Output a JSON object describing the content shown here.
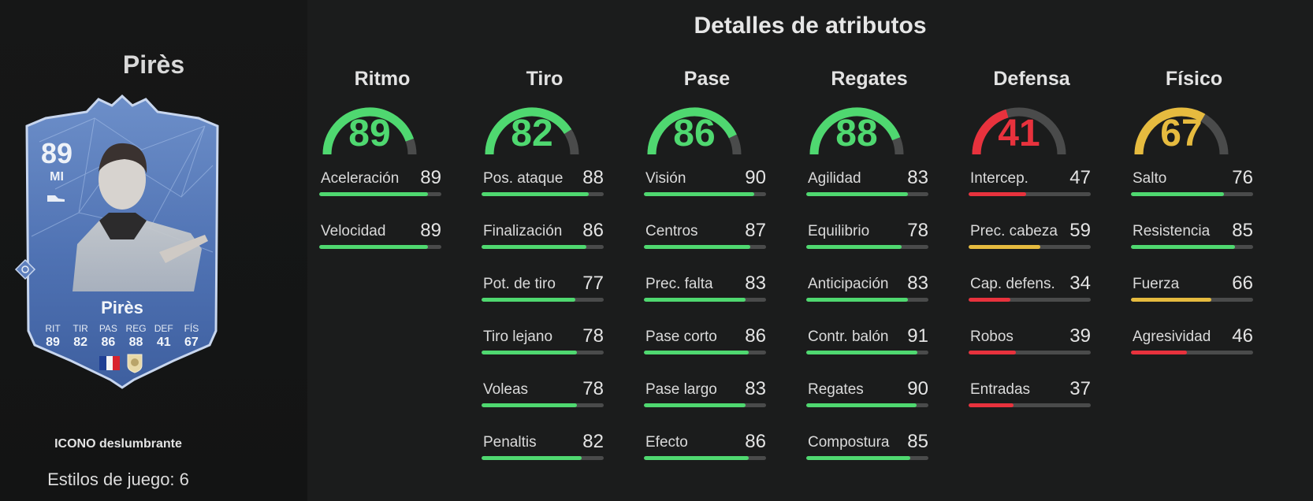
{
  "player": {
    "name": "Pirès",
    "rating": "89",
    "position": "MI",
    "card_name": "Pirès",
    "card_type": "ICONO deslumbrante",
    "playstyles": "Estilos de juego: 6",
    "card_stats": [
      {
        "label": "RIT",
        "value": "89"
      },
      {
        "label": "TIR",
        "value": "82"
      },
      {
        "label": "PAS",
        "value": "86"
      },
      {
        "label": "REG",
        "value": "88"
      },
      {
        "label": "DEF",
        "value": "41"
      },
      {
        "label": "FÍS",
        "value": "67"
      }
    ],
    "nation_flag_colors": [
      "#1f3f94",
      "#f4f4f4",
      "#d8232d"
    ]
  },
  "title": "Detalles de atributos",
  "colors": {
    "green": "#4fd870",
    "red": "#e8323d",
    "yellow": "#e6bb3f",
    "track": "#4a4b4b"
  },
  "categories": [
    {
      "name": "Ritmo",
      "value": "89",
      "level": 89,
      "color": "green",
      "stats": [
        {
          "label": "Aceleración",
          "value": "89",
          "level": 89,
          "color": "green"
        },
        {
          "label": "Velocidad",
          "value": "89",
          "level": 89,
          "color": "green"
        }
      ]
    },
    {
      "name": "Tiro",
      "value": "82",
      "level": 82,
      "color": "green",
      "stats": [
        {
          "label": "Pos. ataque",
          "value": "88",
          "level": 88,
          "color": "green"
        },
        {
          "label": "Finalización",
          "value": "86",
          "level": 86,
          "color": "green"
        },
        {
          "label": "Pot. de tiro",
          "value": "77",
          "level": 77,
          "color": "green"
        },
        {
          "label": "Tiro lejano",
          "value": "78",
          "level": 78,
          "color": "green"
        },
        {
          "label": "Voleas",
          "value": "78",
          "level": 78,
          "color": "green"
        },
        {
          "label": "Penaltis",
          "value": "82",
          "level": 82,
          "color": "green"
        }
      ]
    },
    {
      "name": "Pase",
      "value": "86",
      "level": 86,
      "color": "green",
      "stats": [
        {
          "label": "Visión",
          "value": "90",
          "level": 90,
          "color": "green"
        },
        {
          "label": "Centros",
          "value": "87",
          "level": 87,
          "color": "green"
        },
        {
          "label": "Prec. falta",
          "value": "83",
          "level": 83,
          "color": "green"
        },
        {
          "label": "Pase corto",
          "value": "86",
          "level": 86,
          "color": "green"
        },
        {
          "label": "Pase largo",
          "value": "83",
          "level": 83,
          "color": "green"
        },
        {
          "label": "Efecto",
          "value": "86",
          "level": 86,
          "color": "green"
        }
      ]
    },
    {
      "name": "Regates",
      "value": "88",
      "level": 88,
      "color": "green",
      "stats": [
        {
          "label": "Agilidad",
          "value": "83",
          "level": 83,
          "color": "green"
        },
        {
          "label": "Equilibrio",
          "value": "78",
          "level": 78,
          "color": "green"
        },
        {
          "label": "Anticipación",
          "value": "83",
          "level": 83,
          "color": "green"
        },
        {
          "label": "Contr. balón",
          "value": "91",
          "level": 91,
          "color": "green"
        },
        {
          "label": "Regates",
          "value": "90",
          "level": 90,
          "color": "green"
        },
        {
          "label": "Compostura",
          "value": "85",
          "level": 85,
          "color": "green"
        }
      ]
    },
    {
      "name": "Defensa",
      "value": "41",
      "level": 41,
      "color": "red",
      "stats": [
        {
          "label": "Intercep.",
          "value": "47",
          "level": 47,
          "color": "red"
        },
        {
          "label": "Prec. cabeza",
          "value": "59",
          "level": 59,
          "color": "yellow"
        },
        {
          "label": "Cap. defens.",
          "value": "34",
          "level": 34,
          "color": "red"
        },
        {
          "label": "Robos",
          "value": "39",
          "level": 39,
          "color": "red"
        },
        {
          "label": "Entradas",
          "value": "37",
          "level": 37,
          "color": "red"
        }
      ]
    },
    {
      "name": "Físico",
      "value": "67",
      "level": 67,
      "color": "yellow",
      "stats": [
        {
          "label": "Salto",
          "value": "76",
          "level": 76,
          "color": "green"
        },
        {
          "label": "Resistencia",
          "value": "85",
          "level": 85,
          "color": "green"
        },
        {
          "label": "Fuerza",
          "value": "66",
          "level": 66,
          "color": "yellow"
        },
        {
          "label": "Agresividad",
          "value": "46",
          "level": 46,
          "color": "red"
        }
      ]
    }
  ]
}
